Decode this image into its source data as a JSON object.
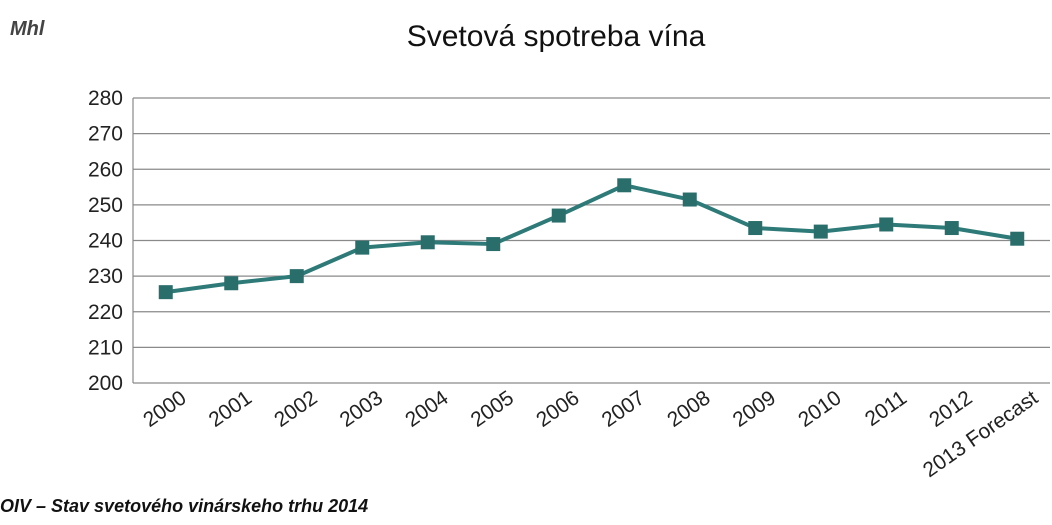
{
  "page": {
    "unit": "Mhl",
    "title": "Svetová spotreba vína",
    "source": "OIV – Stav svetového vinárskeho trhu 2014"
  },
  "chart_data": {
    "type": "line",
    "title": "Svetová spotreba vína",
    "ylabel": "Mhl",
    "xlabel": "",
    "categories": [
      "2000",
      "2001",
      "2002",
      "2003",
      "2004",
      "2005",
      "2006",
      "2007",
      "2008",
      "2009",
      "2010",
      "2011",
      "2012",
      "2013 Forecast"
    ],
    "series": [
      {
        "values": [
          225.5,
          228,
          230,
          238,
          239.5,
          239,
          247,
          255.5,
          251.5,
          243.5,
          242.5,
          244.5,
          243.5,
          240.5
        ]
      }
    ],
    "ylim": [
      200,
      280
    ],
    "yticks": [
      200,
      210,
      220,
      230,
      240,
      250,
      260,
      270,
      280
    ],
    "grid": true,
    "colors": {
      "line": "#2e7a78",
      "marker": "#2a6e6c",
      "grid": "#8a8a8a",
      "axis": "#888888"
    }
  }
}
